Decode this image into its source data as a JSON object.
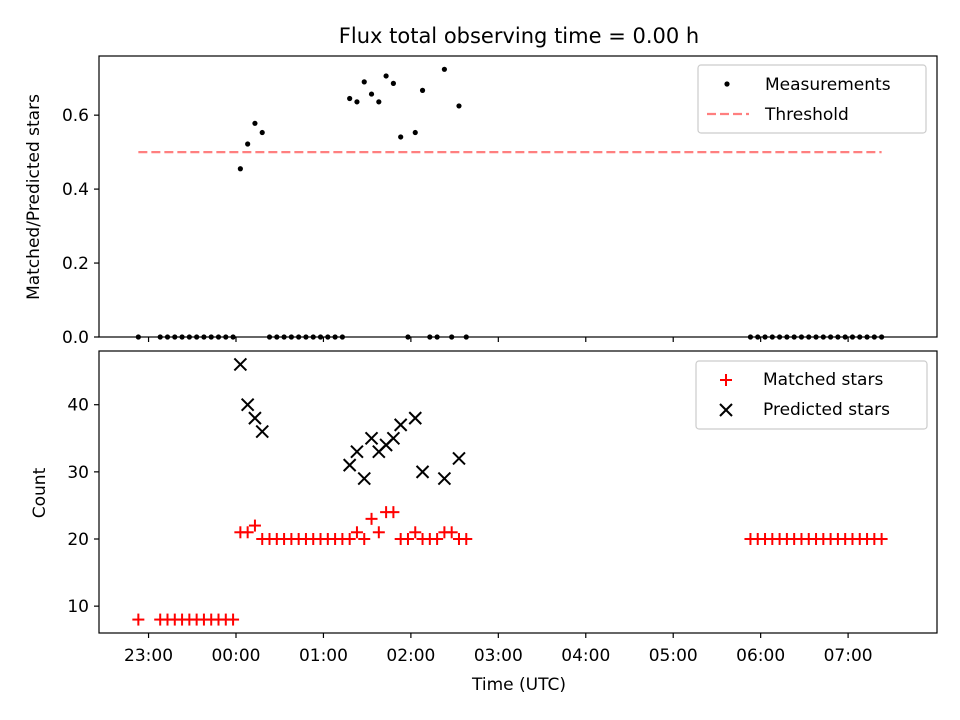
{
  "chart_data": [
    {
      "type": "scatter",
      "title": "Flux total observing time = 0.00 h",
      "xlabel": "",
      "ylabel": "Matched/Predicted stars",
      "x_unit": "time (UTC)",
      "xlim": [
        "22:26",
        "08:01"
      ],
      "ylim": [
        0,
        0.76
      ],
      "yticks": [
        0.0,
        0.2,
        0.4,
        0.6
      ],
      "ytick_labels": [
        "0.0",
        "0.2",
        "0.4",
        "0.6"
      ],
      "grid": false,
      "legend_position": "top-right",
      "series": [
        {
          "name": "Measurements",
          "kind": "scatter",
          "color": "#000000",
          "points": [
            [
              "22:53",
              0.0
            ],
            [
              "23:08",
              0.0
            ],
            [
              "23:13",
              0.0
            ],
            [
              "23:18",
              0.0
            ],
            [
              "23:23",
              0.0
            ],
            [
              "23:28",
              0.0
            ],
            [
              "23:33",
              0.0
            ],
            [
              "23:38",
              0.0
            ],
            [
              "23:43",
              0.0
            ],
            [
              "23:48",
              0.0
            ],
            [
              "23:53",
              0.0
            ],
            [
              "23:58",
              0.0
            ],
            [
              "00:03",
              0.455
            ],
            [
              "00:08",
              0.522
            ],
            [
              "00:13",
              0.578
            ],
            [
              "00:18",
              0.553
            ],
            [
              "00:23",
              0.0
            ],
            [
              "00:28",
              0.0
            ],
            [
              "00:33",
              0.0
            ],
            [
              "00:38",
              0.0
            ],
            [
              "00:43",
              0.0
            ],
            [
              "00:48",
              0.0
            ],
            [
              "00:53",
              0.0
            ],
            [
              "00:58",
              0.0
            ],
            [
              "01:03",
              0.0
            ],
            [
              "01:08",
              0.0
            ],
            [
              "01:13",
              0.0
            ],
            [
              "01:18",
              0.645
            ],
            [
              "01:23",
              0.636
            ],
            [
              "01:28",
              0.69
            ],
            [
              "01:33",
              0.657
            ],
            [
              "01:38",
              0.636
            ],
            [
              "01:43",
              0.706
            ],
            [
              "01:48",
              0.686
            ],
            [
              "01:53",
              0.541
            ],
            [
              "01:58",
              0.0
            ],
            [
              "02:03",
              0.553
            ],
            [
              "02:08",
              0.667
            ],
            [
              "02:13",
              0.0
            ],
            [
              "02:18",
              0.0
            ],
            [
              "02:23",
              0.724
            ],
            [
              "02:28",
              0.0
            ],
            [
              "02:33",
              0.625
            ],
            [
              "02:38",
              0.0
            ],
            [
              "05:53",
              0.0
            ],
            [
              "05:58",
              0.0
            ],
            [
              "06:03",
              0.0
            ],
            [
              "06:08",
              0.0
            ],
            [
              "06:13",
              0.0
            ],
            [
              "06:18",
              0.0
            ],
            [
              "06:23",
              0.0
            ],
            [
              "06:28",
              0.0
            ],
            [
              "06:33",
              0.0
            ],
            [
              "06:38",
              0.0
            ],
            [
              "06:43",
              0.0
            ],
            [
              "06:48",
              0.0
            ],
            [
              "06:53",
              0.0
            ],
            [
              "06:58",
              0.0
            ],
            [
              "07:03",
              0.0
            ],
            [
              "07:08",
              0.0
            ],
            [
              "07:13",
              0.0
            ],
            [
              "07:18",
              0.0
            ],
            [
              "07:23",
              0.0
            ]
          ]
        },
        {
          "name": "Threshold",
          "kind": "dashed-line",
          "color": "#ff7f7f",
          "points": [
            [
              "22:53",
              0.5
            ],
            [
              "07:23",
              0.5
            ]
          ]
        }
      ]
    },
    {
      "type": "scatter",
      "title": "",
      "xlabel": "Time (UTC)",
      "ylabel": "Count",
      "x_unit": "time (UTC)",
      "xlim": [
        "22:26",
        "08:01"
      ],
      "ylim": [
        6,
        48
      ],
      "yticks": [
        10,
        20,
        30,
        40
      ],
      "ytick_labels": [
        "10",
        "20",
        "30",
        "40"
      ],
      "xtick_labels": [
        "23:00",
        "00:00",
        "01:00",
        "02:00",
        "03:00",
        "04:00",
        "05:00",
        "06:00",
        "07:00"
      ],
      "grid": false,
      "legend_position": "top-right",
      "series": [
        {
          "name": "Matched stars",
          "marker": "plus",
          "color": "#ff0000",
          "points": [
            [
              "22:53",
              8
            ],
            [
              "23:08",
              8
            ],
            [
              "23:13",
              8
            ],
            [
              "23:18",
              8
            ],
            [
              "23:23",
              8
            ],
            [
              "23:28",
              8
            ],
            [
              "23:33",
              8
            ],
            [
              "23:38",
              8
            ],
            [
              "23:43",
              8
            ],
            [
              "23:48",
              8
            ],
            [
              "23:53",
              8
            ],
            [
              "23:58",
              8
            ],
            [
              "00:03",
              21
            ],
            [
              "00:08",
              21
            ],
            [
              "00:13",
              22
            ],
            [
              "00:18",
              20
            ],
            [
              "00:23",
              20
            ],
            [
              "00:28",
              20
            ],
            [
              "00:33",
              20
            ],
            [
              "00:38",
              20
            ],
            [
              "00:43",
              20
            ],
            [
              "00:48",
              20
            ],
            [
              "00:53",
              20
            ],
            [
              "00:58",
              20
            ],
            [
              "01:03",
              20
            ],
            [
              "01:08",
              20
            ],
            [
              "01:13",
              20
            ],
            [
              "01:18",
              20
            ],
            [
              "01:23",
              21
            ],
            [
              "01:28",
              20
            ],
            [
              "01:33",
              23
            ],
            [
              "01:38",
              21
            ],
            [
              "01:43",
              24
            ],
            [
              "01:48",
              24
            ],
            [
              "01:53",
              20
            ],
            [
              "01:58",
              20
            ],
            [
              "02:03",
              21
            ],
            [
              "02:08",
              20
            ],
            [
              "02:13",
              20
            ],
            [
              "02:18",
              20
            ],
            [
              "02:23",
              21
            ],
            [
              "02:28",
              21
            ],
            [
              "02:33",
              20
            ],
            [
              "02:38",
              20
            ],
            [
              "05:53",
              20
            ],
            [
              "05:58",
              20
            ],
            [
              "06:03",
              20
            ],
            [
              "06:08",
              20
            ],
            [
              "06:13",
              20
            ],
            [
              "06:18",
              20
            ],
            [
              "06:23",
              20
            ],
            [
              "06:28",
              20
            ],
            [
              "06:33",
              20
            ],
            [
              "06:38",
              20
            ],
            [
              "06:43",
              20
            ],
            [
              "06:48",
              20
            ],
            [
              "06:53",
              20
            ],
            [
              "06:58",
              20
            ],
            [
              "07:03",
              20
            ],
            [
              "07:08",
              20
            ],
            [
              "07:13",
              20
            ],
            [
              "07:18",
              20
            ],
            [
              "07:23",
              20
            ]
          ]
        },
        {
          "name": "Predicted stars",
          "marker": "x",
          "color": "#000000",
          "points": [
            [
              "00:03",
              46
            ],
            [
              "00:08",
              40
            ],
            [
              "00:13",
              38
            ],
            [
              "00:18",
              36
            ],
            [
              "01:18",
              31
            ],
            [
              "01:23",
              33
            ],
            [
              "01:28",
              29
            ],
            [
              "01:33",
              35
            ],
            [
              "01:38",
              33
            ],
            [
              "01:43",
              34
            ],
            [
              "01:48",
              35
            ],
            [
              "01:53",
              37
            ],
            [
              "02:03",
              38
            ],
            [
              "02:08",
              30
            ],
            [
              "02:23",
              29
            ],
            [
              "02:33",
              32
            ]
          ]
        }
      ]
    }
  ]
}
